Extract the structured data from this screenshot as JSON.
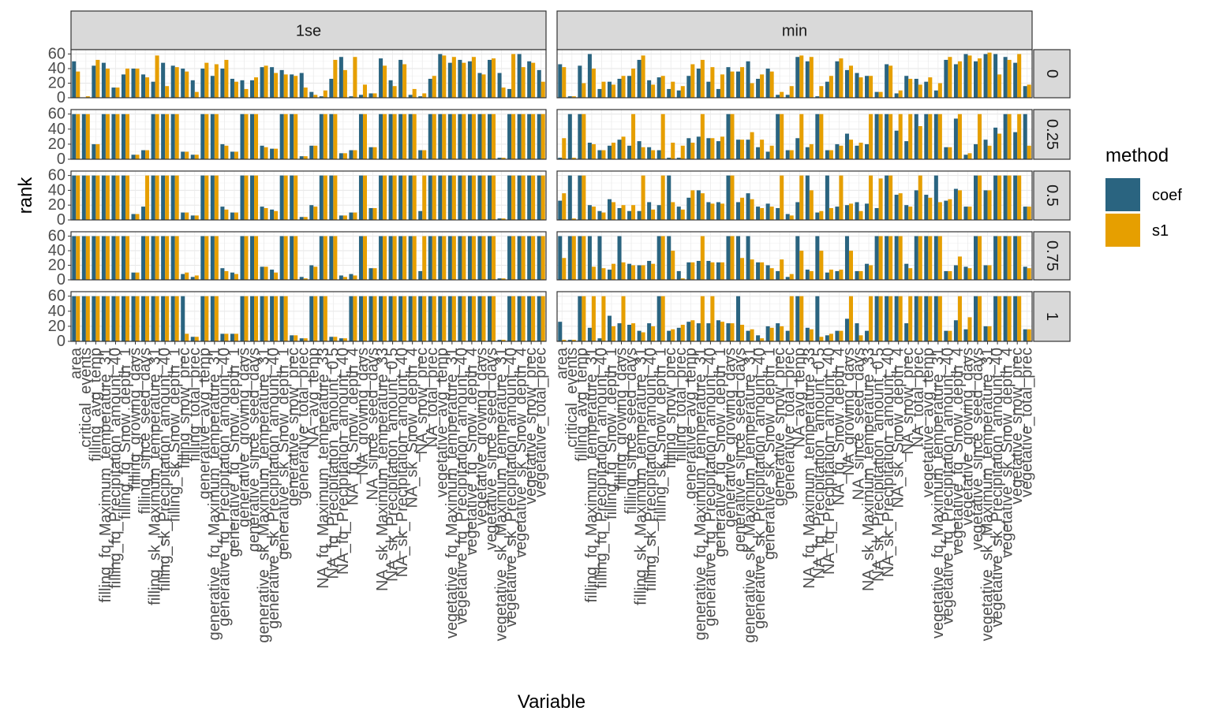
{
  "chart_data": {
    "type": "bar",
    "xlabel": "Variable",
    "ylabel": "rank",
    "ylim": [
      0,
      66
    ],
    "y_ticks": [
      0,
      20,
      40,
      60
    ],
    "y_tick_labels": [
      "0",
      "20",
      "40",
      "60"
    ],
    "grid": true,
    "legend": {
      "title": "method",
      "position": "right",
      "entries": [
        {
          "name": "coef",
          "color": "#2a6480"
        },
        {
          "name": "s1",
          "color": "#e69f00"
        }
      ]
    },
    "facet_columns": [
      "1se",
      "min"
    ],
    "facet_rows": [
      "0",
      "0.25",
      "0.5",
      "0.75",
      "1"
    ],
    "categories": [
      "area",
      "critical_events",
      "filling_avg_temp",
      "filling_fq_Maximum_temperature_31",
      "filling_fq_Precipitation_amount_40",
      "filling_fq_Snow_depth_1",
      "filling_growing_days",
      "filling_since_seed_days",
      "filling_sk_Maximum_temperature_31",
      "filling_sk_Precipitation_amount_40",
      "filling_sk_Snow_depth_1",
      "filling_snow_prec",
      "filling_total_prec",
      "generative_avg_temp",
      "generative_fq_Maximum_temperature_31",
      "generative_fq_Precipitation_amount_40",
      "generative_fq_Snow_depth_1",
      "generative_growing_days",
      "generative_since_seed_days",
      "generative_sk_Maximum_temperature_31",
      "generative_sk_Precipitation_amount_40",
      "generative_sk_Snow_depth_1",
      "generative_snow_prec",
      "generative_total_prec",
      "NA_avg_temp",
      "NA_fq_Maximum_temperature_33",
      "NA_fq_Precipitation_amount_0.5",
      "NA_fq_Precipitation_amount_40",
      "NA_fq_Snow_depth_4",
      "NA_growing_days",
      "NA_since_seed_days",
      "NA_sk_Maximum_temperature_33",
      "NA_sk_Precipitation_amount_0.5",
      "NA_sk_Precipitation_amount_40",
      "NA_sk_Snow_depth_4",
      "NA_snow_prec",
      "NA_total_prec",
      "vegetative_avg_temp",
      "vegetative_fq_Maximum_temperature_31",
      "vegetative_fq_Precipitation_amount_40",
      "vegetative_fq_Snow_depth_4",
      "vegetative_growing_days",
      "vegetative_since_seed_days",
      "vegetative_sk_Maximum_temperature_31",
      "vegetative_sk_Precipitation_amount_40",
      "vegetative_sk_Snow_depth_4",
      "vegetative_snow_prec",
      "vegetative_total_prec"
    ],
    "panels": [
      {
        "col": "1se",
        "row": "0",
        "coef": [
          50,
          0,
          44,
          48,
          14,
          32,
          40,
          32,
          22,
          48,
          44,
          40,
          24,
          40,
          30,
          40,
          26,
          24,
          24,
          42,
          42,
          38,
          32,
          34,
          8,
          2,
          26,
          56,
          2,
          4,
          6,
          54,
          24,
          52,
          4,
          2,
          26,
          60,
          48,
          52,
          50,
          34,
          52,
          34,
          12,
          60,
          50,
          38
        ],
        "s1": [
          36,
          2,
          52,
          40,
          14,
          40,
          40,
          28,
          58,
          16,
          42,
          36,
          8,
          48,
          46,
          52,
          22,
          12,
          28,
          44,
          34,
          32,
          30,
          14,
          4,
          10,
          52,
          38,
          56,
          18,
          6,
          44,
          16,
          46,
          12,
          6,
          30,
          58,
          56,
          48,
          56,
          32,
          54,
          14,
          60,
          42,
          48,
          22
        ]
      },
      {
        "col": "1se",
        "row": "0.25",
        "coef": [
          60,
          60,
          20,
          60,
          60,
          60,
          6,
          12,
          60,
          60,
          60,
          10,
          6,
          60,
          60,
          20,
          10,
          60,
          60,
          18,
          14,
          60,
          60,
          4,
          18,
          60,
          60,
          8,
          12,
          60,
          16,
          60,
          60,
          60,
          60,
          12,
          60,
          60,
          60,
          60,
          60,
          60,
          60,
          2,
          60,
          60,
          60,
          60
        ],
        "s1": [
          60,
          60,
          20,
          60,
          60,
          60,
          6,
          12,
          60,
          60,
          60,
          10,
          6,
          60,
          60,
          18,
          10,
          60,
          60,
          16,
          14,
          60,
          60,
          4,
          18,
          60,
          60,
          8,
          12,
          60,
          16,
          60,
          60,
          60,
          60,
          12,
          60,
          60,
          60,
          60,
          60,
          60,
          60,
          2,
          60,
          60,
          60,
          60
        ]
      },
      {
        "col": "1se",
        "row": "0.5",
        "coef": [
          60,
          60,
          60,
          60,
          60,
          60,
          8,
          18,
          60,
          60,
          60,
          10,
          6,
          60,
          60,
          18,
          10,
          60,
          60,
          18,
          14,
          60,
          60,
          4,
          20,
          60,
          60,
          6,
          10,
          60,
          16,
          60,
          60,
          60,
          60,
          12,
          60,
          60,
          60,
          60,
          60,
          60,
          60,
          2,
          60,
          60,
          60,
          60
        ],
        "s1": [
          60,
          60,
          60,
          60,
          60,
          60,
          8,
          60,
          60,
          60,
          60,
          10,
          6,
          60,
          60,
          14,
          10,
          60,
          60,
          16,
          12,
          60,
          60,
          4,
          18,
          60,
          60,
          6,
          10,
          60,
          16,
          60,
          60,
          60,
          60,
          60,
          60,
          60,
          60,
          60,
          60,
          60,
          60,
          2,
          60,
          60,
          60,
          60
        ]
      },
      {
        "col": "1se",
        "row": "0.75",
        "coef": [
          60,
          60,
          60,
          60,
          60,
          60,
          10,
          60,
          60,
          60,
          60,
          8,
          4,
          60,
          60,
          16,
          10,
          60,
          60,
          18,
          14,
          60,
          60,
          4,
          20,
          60,
          60,
          6,
          8,
          60,
          16,
          60,
          60,
          60,
          60,
          12,
          60,
          60,
          60,
          60,
          60,
          60,
          60,
          2,
          60,
          60,
          60,
          60
        ],
        "s1": [
          60,
          60,
          60,
          60,
          60,
          60,
          10,
          60,
          60,
          60,
          60,
          10,
          6,
          60,
          60,
          12,
          8,
          60,
          60,
          18,
          10,
          60,
          60,
          2,
          18,
          60,
          60,
          4,
          6,
          60,
          16,
          60,
          60,
          60,
          60,
          60,
          60,
          60,
          60,
          60,
          60,
          60,
          60,
          2,
          60,
          60,
          60,
          60
        ]
      },
      {
        "col": "1se",
        "row": "1",
        "coef": [
          60,
          60,
          60,
          60,
          60,
          60,
          60,
          60,
          60,
          60,
          60,
          60,
          6,
          60,
          60,
          10,
          10,
          60,
          60,
          60,
          60,
          60,
          8,
          4,
          60,
          60,
          6,
          4,
          60,
          60,
          60,
          60,
          60,
          60,
          60,
          60,
          60,
          60,
          60,
          60,
          60,
          60,
          60,
          2,
          60,
          60,
          60,
          60
        ],
        "s1": [
          60,
          60,
          60,
          60,
          60,
          60,
          60,
          60,
          60,
          60,
          60,
          10,
          6,
          60,
          60,
          10,
          10,
          60,
          60,
          60,
          60,
          60,
          8,
          4,
          60,
          60,
          6,
          4,
          60,
          60,
          60,
          60,
          60,
          60,
          60,
          60,
          60,
          60,
          60,
          60,
          60,
          60,
          60,
          2,
          60,
          60,
          60,
          60
        ]
      },
      {
        "col": "min",
        "row": "0",
        "coef": [
          46,
          2,
          44,
          60,
          12,
          22,
          26,
          30,
          52,
          24,
          28,
          12,
          10,
          30,
          40,
          22,
          12,
          42,
          36,
          50,
          26,
          40,
          4,
          4,
          56,
          50,
          2,
          22,
          50,
          38,
          34,
          30,
          8,
          46,
          6,
          30,
          26,
          22,
          10,
          52,
          46,
          60,
          50,
          60,
          60,
          56,
          48,
          16
        ],
        "s1": [
          42,
          2,
          20,
          40,
          22,
          18,
          30,
          40,
          58,
          18,
          30,
          22,
          16,
          46,
          52,
          42,
          32,
          36,
          42,
          20,
          32,
          36,
          8,
          16,
          58,
          56,
          16,
          30,
          54,
          44,
          28,
          30,
          8,
          44,
          10,
          26,
          18,
          28,
          20,
          56,
          50,
          58,
          54,
          62,
          32,
          52,
          60,
          18
        ]
      },
      {
        "col": "min",
        "row": "0.25",
        "coef": [
          2,
          60,
          60,
          22,
          12,
          18,
          26,
          18,
          24,
          16,
          12,
          2,
          2,
          28,
          30,
          28,
          24,
          60,
          26,
          26,
          16,
          10,
          60,
          12,
          28,
          16,
          60,
          12,
          20,
          34,
          18,
          20,
          60,
          60,
          38,
          24,
          60,
          60,
          60,
          16,
          54,
          6,
          20,
          26,
          42,
          60,
          36,
          60
        ],
        "s1": [
          28,
          2,
          60,
          20,
          12,
          22,
          30,
          60,
          16,
          12,
          60,
          22,
          18,
          22,
          60,
          28,
          30,
          60,
          26,
          36,
          26,
          18,
          60,
          12,
          60,
          20,
          60,
          12,
          18,
          26,
          22,
          60,
          60,
          60,
          60,
          60,
          44,
          60,
          60,
          16,
          60,
          8,
          60,
          18,
          34,
          60,
          60,
          18
        ]
      },
      {
        "col": "min",
        "row": "0.5",
        "coef": [
          26,
          60,
          60,
          20,
          12,
          28,
          16,
          12,
          12,
          24,
          20,
          60,
          18,
          30,
          40,
          24,
          24,
          60,
          24,
          36,
          18,
          22,
          16,
          8,
          24,
          60,
          10,
          60,
          18,
          20,
          24,
          22,
          16,
          60,
          34,
          20,
          40,
          34,
          60,
          26,
          42,
          18,
          60,
          40,
          60,
          60,
          60,
          18
        ],
        "s1": [
          36,
          2,
          60,
          18,
          10,
          24,
          20,
          20,
          60,
          14,
          60,
          24,
          14,
          40,
          36,
          22,
          22,
          60,
          30,
          28,
          16,
          18,
          60,
          6,
          60,
          40,
          12,
          16,
          60,
          22,
          12,
          60,
          56,
          60,
          36,
          18,
          60,
          30,
          24,
          28,
          40,
          18,
          60,
          40,
          60,
          60,
          60,
          18
        ],
        "__comment": ""
      },
      {
        "col": "min",
        "row": "0.75",
        "coef": [
          60,
          60,
          60,
          60,
          60,
          14,
          60,
          22,
          20,
          26,
          60,
          60,
          12,
          24,
          26,
          26,
          24,
          60,
          60,
          60,
          24,
          20,
          12,
          4,
          60,
          14,
          60,
          10,
          12,
          60,
          12,
          22,
          60,
          60,
          60,
          22,
          60,
          60,
          60,
          12,
          20,
          18,
          60,
          20,
          60,
          60,
          60,
          18
        ],
        "s1": [
          30,
          60,
          60,
          18,
          16,
          22,
          24,
          20,
          20,
          22,
          60,
          40,
          2,
          24,
          60,
          24,
          24,
          60,
          30,
          28,
          24,
          16,
          28,
          8,
          40,
          12,
          40,
          14,
          14,
          40,
          12,
          20,
          60,
          60,
          60,
          16,
          60,
          60,
          60,
          12,
          32,
          16,
          60,
          20,
          60,
          60,
          60,
          16
        ],
        "__comment": ""
      },
      {
        "col": "min",
        "row": "1",
        "coef": [
          26,
          2,
          60,
          18,
          4,
          34,
          24,
          22,
          14,
          24,
          60,
          14,
          18,
          26,
          24,
          24,
          28,
          24,
          60,
          14,
          8,
          20,
          24,
          14,
          60,
          18,
          60,
          8,
          14,
          30,
          24,
          14,
          60,
          60,
          60,
          24,
          60,
          60,
          60,
          14,
          28,
          16,
          60,
          20,
          60,
          60,
          60,
          16
        ],
        "s1": [
          2,
          2,
          60,
          60,
          60,
          20,
          60,
          24,
          12,
          20,
          60,
          16,
          22,
          28,
          60,
          60,
          26,
          24,
          22,
          16,
          4,
          18,
          20,
          60,
          60,
          16,
          6,
          10,
          14,
          60,
          8,
          60,
          60,
          60,
          60,
          60,
          60,
          60,
          60,
          14,
          60,
          32,
          60,
          20,
          60,
          60,
          60,
          16
        ]
      }
    ]
  }
}
